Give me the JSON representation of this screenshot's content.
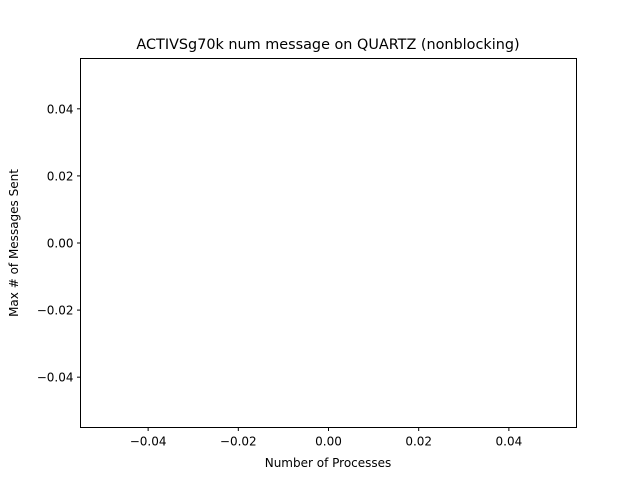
{
  "chart_data": {
    "type": "line",
    "title": "ACTIVSg70k num message on QUARTZ (nonblocking)",
    "xlabel": "Number of Processes",
    "ylabel": "Max # of Messages Sent",
    "xlim": [
      -0.055,
      0.055
    ],
    "ylim": [
      -0.055,
      0.055
    ],
    "x_ticks": [
      -0.04,
      -0.02,
      0.0,
      0.02,
      0.04
    ],
    "x_tick_labels": [
      "−0.04",
      "−0.02",
      "0.00",
      "0.02",
      "0.04"
    ],
    "y_ticks": [
      -0.04,
      -0.02,
      0.0,
      0.02,
      0.04
    ],
    "y_tick_labels": [
      "−0.04",
      "−0.02",
      "0.00",
      "0.02",
      "0.04"
    ],
    "grid": false,
    "series": []
  }
}
